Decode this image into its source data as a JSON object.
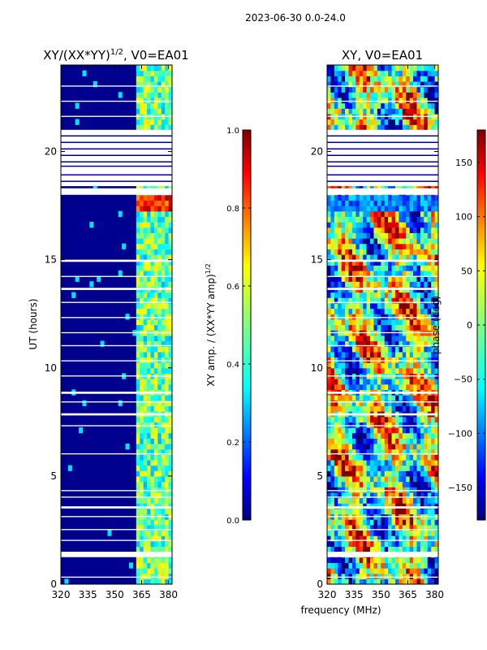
{
  "suptitle": "2023-06-30 0.0-24.0",
  "xlabel_shared": "frequency (MHz)",
  "chart_data": [
    {
      "type": "heatmap",
      "title_main": "XY/(XX*YY)",
      "title_sup": "1/2",
      "title_tail": ", V0=EA01",
      "ylabel": "UT (hours)",
      "xlim": [
        320,
        382
      ],
      "ylim": [
        0,
        24
      ],
      "xticks": [
        320,
        335,
        350,
        365,
        380
      ],
      "yticks": [
        0,
        5,
        10,
        15,
        20
      ],
      "xtick_labels": [
        "320",
        "335",
        "350",
        "365",
        "380"
      ],
      "ytick_labels": [
        "0",
        "5",
        "10",
        "15",
        "20"
      ],
      "colormap": "jet",
      "colorbar": {
        "label_main": "XY amp. / (XX*YY amp)",
        "label_sup": "1/2",
        "range": [
          0.0,
          1.0
        ],
        "ticks": [
          0.0,
          0.2,
          0.4,
          0.6,
          0.8,
          1.0
        ],
        "tick_labels": [
          "0.0",
          "0.2",
          "0.4",
          "0.6",
          "0.8",
          "1.0"
        ]
      }
    },
    {
      "type": "heatmap",
      "title_main": "XY, V0=EA01",
      "title_sup": "",
      "title_tail": "",
      "ylabel": "",
      "xlim": [
        320,
        382
      ],
      "ylim": [
        0,
        24
      ],
      "xticks": [
        320,
        335,
        350,
        365,
        380
      ],
      "yticks": [
        0,
        5,
        10,
        15,
        20
      ],
      "xtick_labels": [
        "320",
        "335",
        "350",
        "365",
        "380"
      ],
      "ytick_labels": [
        "0",
        "5",
        "10",
        "15",
        "20"
      ],
      "colormap": "jet",
      "colorbar": {
        "label_main": "phase (deg)",
        "label_sup": "",
        "range": [
          -180,
          180
        ],
        "ticks": [
          -150,
          -100,
          -50,
          0,
          50,
          100,
          150
        ],
        "tick_labels": [
          "−150",
          "−100",
          "−50",
          "0",
          "50",
          "100",
          "150"
        ]
      }
    }
  ],
  "colors": {
    "jet": [
      "#00007f",
      "#0000ff",
      "#007fff",
      "#00ffff",
      "#7fff7f",
      "#ffff00",
      "#ff7f00",
      "#ff0000",
      "#7f0000"
    ],
    "background": "#00008f",
    "axis": "#000000"
  }
}
